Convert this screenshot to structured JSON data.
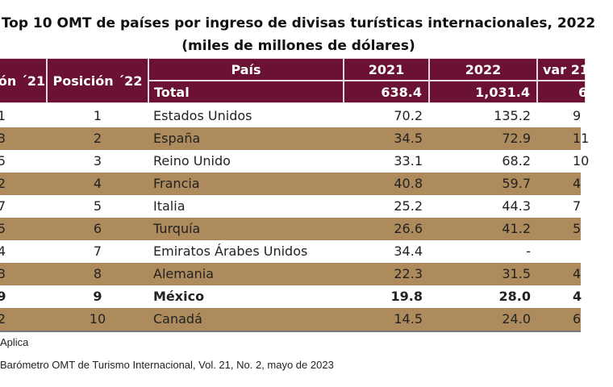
{
  "title": {
    "line1": "Top 10 OMT de países por ingreso de divisas turísticas internacionales, 2022",
    "line2": "(miles de millones de dólares)"
  },
  "colors": {
    "header": "#6b1133",
    "stripe": "#ae8b5c"
  },
  "table": {
    "headers": {
      "pos21": "ón ´21",
      "pos22": "Posición ´22",
      "country": "País",
      "y2021": "2021",
      "y2022": "2022",
      "var": "var 21"
    },
    "total": {
      "label": "Total",
      "y2021": "638.4",
      "y2022": "1,031.4",
      "var": "6"
    },
    "rows": [
      {
        "pos21": "1",
        "pos22": "1",
        "country": "Estados Unidos",
        "y2021": "70.2",
        "y2022": "135.2",
        "var": "9"
      },
      {
        "pos21": "3",
        "pos22": "2",
        "country": "España",
        "y2021": "34.5",
        "y2022": "72.9",
        "var": "11"
      },
      {
        "pos21": "5",
        "pos22": "3",
        "country": "Reino Unido",
        "y2021": "33.1",
        "y2022": "68.2",
        "var": "10"
      },
      {
        "pos21": "2",
        "pos22": "4",
        "country": "Francia",
        "y2021": "40.8",
        "y2022": "59.7",
        "var": "4"
      },
      {
        "pos21": "7",
        "pos22": "5",
        "country": "Italia",
        "y2021": "25.2",
        "y2022": "44.3",
        "var": "7"
      },
      {
        "pos21": "5",
        "pos22": "6",
        "country": "Turquía",
        "y2021": "26.6",
        "y2022": "41.2",
        "var": "5"
      },
      {
        "pos21": "4",
        "pos22": "7",
        "country": "Emiratos Árabes Unidos",
        "y2021": "34.4",
        "y2022": "-",
        "var": ""
      },
      {
        "pos21": "3",
        "pos22": "8",
        "country": "Alemania",
        "y2021": "22.3",
        "y2022": "31.5",
        "var": "4"
      },
      {
        "pos21": "9",
        "pos22": "9",
        "country": "México",
        "y2021": "19.8",
        "y2022": "28.0",
        "var": "4"
      },
      {
        "pos21": "2",
        "pos22": "10",
        "country": "Canadá",
        "y2021": "14.5",
        "y2022": "24.0",
        "var": "6"
      }
    ]
  },
  "notes": {
    "na": "Aplica",
    "source": "Barómetro OMT de Turismo Internacional, Vol. 21, No. 2, mayo de 2023"
  }
}
